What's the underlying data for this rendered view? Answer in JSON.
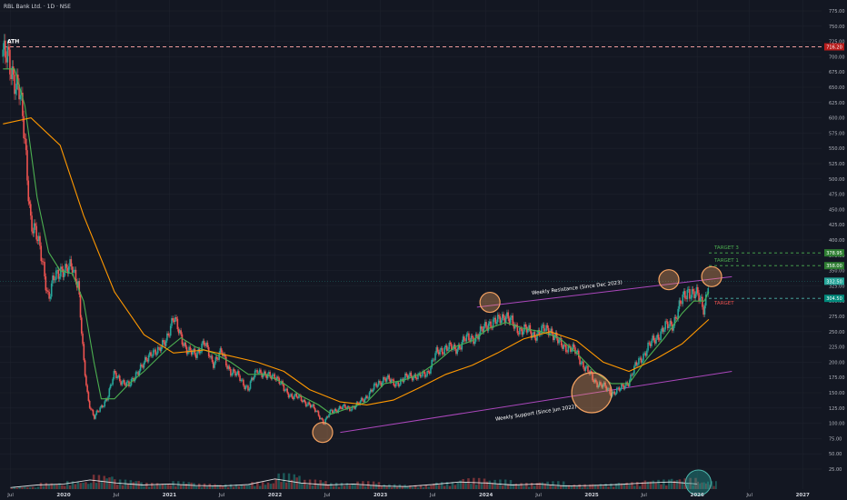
{
  "header": {
    "symbol_line": "RBL Bank Ltd. · 1D · NSE"
  },
  "colors": {
    "background": "#131722",
    "grid": "#1e222d",
    "axis_text": "#b2b5be",
    "candle_up": "#26a69a",
    "candle_down": "#ef5350",
    "ma_fast": "#4caf50",
    "ma_slow": "#ff9800",
    "trendline": "#ab47bc",
    "ath_line": "#ef9a9a",
    "target_line": "#4caf50",
    "stop_line": "#4db6ac",
    "circle_fill": "#f4a261",
    "volume_ma": "#ffffff"
  },
  "chart_data": {
    "type": "line",
    "title": "RBL Bank Ltd. · 1D · NSE",
    "xlabel": "",
    "ylabel": "",
    "ylim": [
      0,
      790
    ],
    "x_tick_labels": [
      "Jul",
      "2020",
      "Jul",
      "2021",
      "Jul",
      "2022",
      "Jul",
      "2023",
      "Jul",
      "2024",
      "Jul",
      "2025",
      "Jul",
      "2026",
      "Jul",
      "2027"
    ],
    "x_tick_dates": [
      "2019-07-01",
      "2020-01-01",
      "2020-07-01",
      "2021-01-01",
      "2021-07-01",
      "2022-01-01",
      "2022-07-01",
      "2023-01-01",
      "2023-07-01",
      "2024-01-01",
      "2024-07-01",
      "2025-01-01",
      "2025-07-01",
      "2026-01-01",
      "2026-07-01",
      "2027-01-01"
    ],
    "y_tick_labels": [
      "25.00",
      "50.00",
      "75.00",
      "100.00",
      "125.00",
      "150.00",
      "175.00",
      "200.00",
      "225.00",
      "250.00",
      "275.00",
      "300.00",
      "325.00",
      "350.00",
      "375.00",
      "400.00",
      "425.00",
      "450.00",
      "475.00",
      "500.00",
      "525.00",
      "550.00",
      "575.00",
      "600.00",
      "625.00",
      "650.00",
      "675.00",
      "700.00",
      "725.00",
      "750.00",
      "775.00"
    ],
    "grid": true,
    "series": [
      {
        "role": "price",
        "x": [
          "2019-06-05",
          "2019-06-25",
          "2019-07-15",
          "2019-08-01",
          "2019-08-20",
          "2019-09-10",
          "2019-10-01",
          "2019-10-20",
          "2019-11-10",
          "2019-12-01",
          "2019-12-20",
          "2020-01-10",
          "2020-01-31",
          "2020-02-20",
          "2020-03-10",
          "2020-03-25",
          "2020-04-15",
          "2020-05-10",
          "2020-06-01",
          "2020-06-25",
          "2020-07-20",
          "2020-08-15",
          "2020-09-10",
          "2020-10-05",
          "2020-11-01",
          "2020-11-25",
          "2020-12-20",
          "2021-01-15",
          "2021-02-10",
          "2021-03-05",
          "2021-04-01",
          "2021-05-01",
          "2021-06-01",
          "2021-07-01",
          "2021-08-01",
          "2021-09-01",
          "2021-10-01",
          "2021-11-01",
          "2021-12-01",
          "2022-01-01",
          "2022-02-01",
          "2022-03-01",
          "2022-04-01",
          "2022-05-01",
          "2022-06-01",
          "2022-06-20",
          "2022-07-15",
          "2022-08-15",
          "2022-09-15",
          "2022-10-15",
          "2022-11-15",
          "2022-12-15",
          "2023-01-15",
          "2023-02-15",
          "2023-03-20",
          "2023-04-15",
          "2023-05-15",
          "2023-06-15",
          "2023-07-15",
          "2023-08-15",
          "2023-09-15",
          "2023-10-15",
          "2023-11-15",
          "2023-12-10",
          "2024-01-10",
          "2024-02-10",
          "2024-03-10",
          "2024-04-10",
          "2024-05-10",
          "2024-06-10",
          "2024-07-10",
          "2024-08-10",
          "2024-09-10",
          "2024-10-10",
          "2024-11-10",
          "2024-12-10",
          "2025-01-10",
          "2025-02-10",
          "2025-03-10",
          "2025-04-10",
          "2025-05-10",
          "2025-06-10",
          "2025-07-10",
          "2025-08-10",
          "2025-09-10",
          "2025-10-10",
          "2025-11-10",
          "2025-12-01",
          "2025-12-20",
          "2026-01-10",
          "2026-01-25",
          "2026-02-10"
        ],
        "values": [
          700,
          690,
          670,
          640,
          560,
          430,
          400,
          370,
          300,
          340,
          355,
          345,
          360,
          330,
          200,
          140,
          110,
          125,
          145,
          180,
          170,
          160,
          185,
          195,
          220,
          215,
          240,
          270,
          245,
          215,
          215,
          230,
          200,
          215,
          185,
          175,
          155,
          190,
          175,
          180,
          155,
          145,
          140,
          130,
          115,
          100,
          120,
          125,
          125,
          130,
          145,
          160,
          175,
          165,
          170,
          180,
          175,
          185,
          215,
          225,
          220,
          235,
          240,
          245,
          265,
          265,
          280,
          255,
          255,
          245,
          250,
          255,
          230,
          225,
          215,
          190,
          170,
          160,
          150,
          155,
          170,
          200,
          220,
          240,
          255,
          265,
          300,
          320,
          310,
          305,
          290,
          335
        ]
      },
      {
        "role": "ma_fast",
        "x": [
          "2019-06-05",
          "2019-07-15",
          "2019-08-20",
          "2019-10-01",
          "2019-11-10",
          "2019-12-20",
          "2020-01-31",
          "2020-03-10",
          "2020-04-15",
          "2020-05-10",
          "2020-06-25",
          "2020-08-15",
          "2020-10-05",
          "2020-12-20",
          "2021-02-10",
          "2021-04-01",
          "2021-06-01",
          "2021-08-01",
          "2021-10-01",
          "2021-12-01",
          "2022-02-01",
          "2022-04-01",
          "2022-06-01",
          "2022-07-15",
          "2022-09-15",
          "2022-11-15",
          "2023-01-15",
          "2023-03-20",
          "2023-05-15",
          "2023-07-15",
          "2023-09-15",
          "2023-11-15",
          "2024-01-10",
          "2024-03-10",
          "2024-05-10",
          "2024-07-10",
          "2024-09-10",
          "2024-11-10",
          "2025-01-10",
          "2025-03-10",
          "2025-05-10",
          "2025-07-10",
          "2025-09-10",
          "2025-11-10",
          "2025-12-20",
          "2026-01-25",
          "2026-02-10"
        ],
        "values": [
          680,
          680,
          620,
          470,
          380,
          350,
          345,
          300,
          200,
          140,
          140,
          165,
          185,
          220,
          240,
          225,
          215,
          200,
          180,
          180,
          165,
          145,
          130,
          115,
          125,
          135,
          165,
          170,
          180,
          200,
          225,
          235,
          255,
          265,
          255,
          250,
          240,
          215,
          185,
          165,
          165,
          205,
          240,
          280,
          300,
          300,
          315
        ]
      },
      {
        "role": "ma_slow",
        "x": [
          "2019-06-05",
          "2019-09-10",
          "2019-12-20",
          "2020-03-10",
          "2020-06-25",
          "2020-10-05",
          "2021-01-15",
          "2021-05-01",
          "2021-08-01",
          "2021-11-01",
          "2022-02-01",
          "2022-05-01",
          "2022-08-15",
          "2022-11-15",
          "2023-02-15",
          "2023-05-15",
          "2023-08-15",
          "2023-11-15",
          "2024-02-10",
          "2024-05-10",
          "2024-08-10",
          "2024-11-10",
          "2025-02-10",
          "2025-05-10",
          "2025-08-10",
          "2025-11-10",
          "2026-02-10"
        ],
        "values": [
          590,
          600,
          555,
          440,
          315,
          245,
          215,
          220,
          210,
          200,
          185,
          155,
          135,
          130,
          138,
          158,
          180,
          195,
          215,
          238,
          250,
          235,
          200,
          185,
          205,
          230,
          270
        ]
      }
    ],
    "annotations": {
      "ath_label": "ATH",
      "ath_price": "716.20",
      "ath_value": 716.2,
      "resistance_label": "Weekly Resistance (Since Dec 2023)",
      "support_label": "Weekly Support (Since Jun 2022)",
      "resistance_line": {
        "x": [
          "2023-12-01",
          "2026-05-01"
        ],
        "y": [
          290,
          340
        ]
      },
      "support_line": {
        "x": [
          "2022-08-15",
          "2026-05-01"
        ],
        "y": [
          85,
          185
        ]
      },
      "targets": [
        {
          "label": "TARGET 3",
          "price": "378.95",
          "value": 378.95,
          "kind": "target"
        },
        {
          "label": "TARGET 1",
          "price": "358.00",
          "value": 358.0,
          "kind": "target"
        },
        {
          "label": "TARGET",
          "price": "304.50",
          "value": 304.5,
          "kind": "stop"
        }
      ],
      "current_price": "332.50",
      "current_value": 332.5,
      "highlight_circles": [
        {
          "x": "2024-01-15",
          "y": 298,
          "size": "small"
        },
        {
          "x": "2025-09-25",
          "y": 335,
          "size": "small"
        },
        {
          "x": "2026-02-20",
          "y": 340,
          "size": "small"
        },
        {
          "x": "2022-06-15",
          "y": 85,
          "size": "small"
        },
        {
          "x": "2025-01-01",
          "y": 150,
          "size": "large"
        }
      ]
    },
    "volume": {
      "x": [
        "2019-07",
        "2019-10",
        "2020-01",
        "2020-04",
        "2020-07",
        "2020-10",
        "2021-01",
        "2021-04",
        "2021-07",
        "2021-10",
        "2022-01",
        "2022-04",
        "2022-07",
        "2022-10",
        "2023-01",
        "2023-04",
        "2023-07",
        "2023-10",
        "2024-01",
        "2024-04",
        "2024-07",
        "2024-10",
        "2025-01",
        "2025-04",
        "2025-07",
        "2025-10",
        "2026-01"
      ],
      "values": [
        3,
        8,
        10,
        18,
        12,
        8,
        10,
        7,
        6,
        9,
        20,
        12,
        8,
        10,
        6,
        5,
        9,
        14,
        12,
        8,
        10,
        6,
        7,
        9,
        12,
        14,
        10
      ]
    },
    "volume_scale_max": 25
  }
}
